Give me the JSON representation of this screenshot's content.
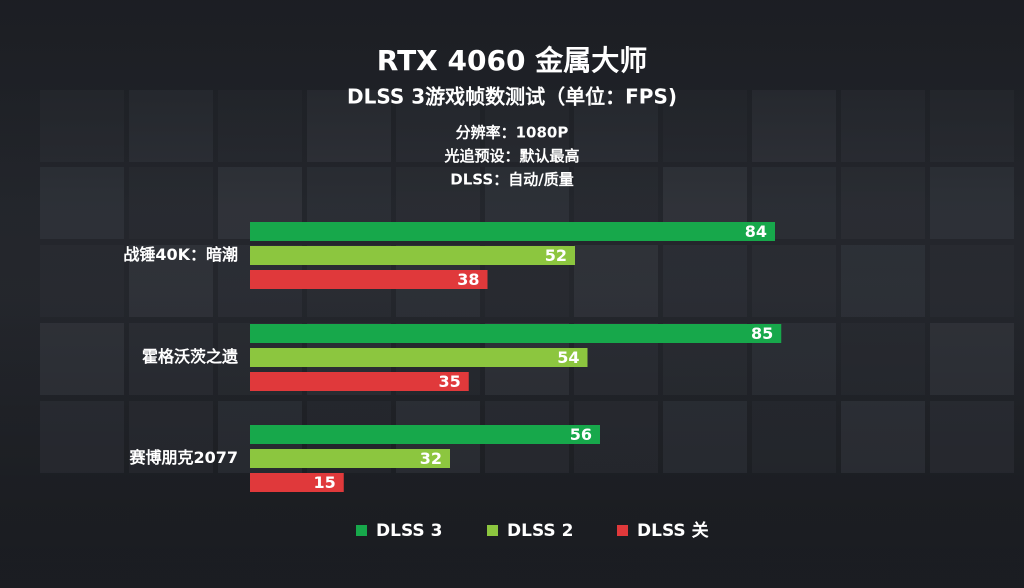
{
  "chart_data": {
    "type": "bar",
    "orientation": "horizontal",
    "title": "RTX 4060 金属大师",
    "subtitle": "DLSS 3游戏帧数测试（单位：FPS)",
    "annotations": [
      "分辨率：1080P",
      "光追预设：默认最高",
      "DLSS：自动/质量"
    ],
    "categories": [
      "战锤40K：暗潮",
      "霍格沃茨之遗",
      "赛博朋克2077"
    ],
    "series": [
      {
        "name": "DLSS 3",
        "color": "#17a84b",
        "values": [
          84,
          85,
          56
        ]
      },
      {
        "name": "DLSS 2",
        "color": "#8cc63f",
        "values": [
          52,
          54,
          32
        ]
      },
      {
        "name": "DLSS 关",
        "color": "#e0393b",
        "values": [
          38,
          35,
          15
        ]
      }
    ],
    "legend": "bottom"
  }
}
